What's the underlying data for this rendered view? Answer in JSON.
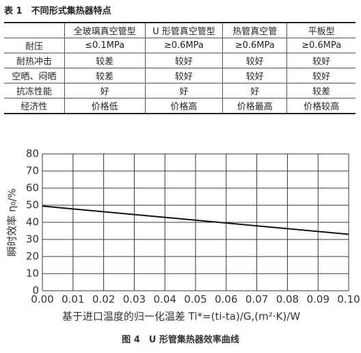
{
  "table": {
    "title": "表 1　不同形式集热器特点",
    "header": [
      "全玻璃真空管型",
      "U 形管真空管型",
      "热管真空管",
      "平板型"
    ],
    "rows": [
      [
        "耐压",
        "≤0.1MPa",
        "≥0.6MPa",
        "≥0.6MPa",
        "≥0.6MPa"
      ],
      [
        "耐热冲击",
        "较差",
        "较好",
        "较好",
        "较好"
      ],
      [
        "空晒、闷晒",
        "较差",
        "较好",
        "较好",
        "较好"
      ],
      [
        "抗冻性能",
        "好",
        "好",
        "好",
        "较差"
      ],
      [
        "经济性",
        "价格低",
        "价格高",
        "价格最高",
        "价格较高"
      ]
    ]
  },
  "chart_data": {
    "type": "line",
    "caption": "图 4　U 形管集热器效率曲线",
    "xlabel": "基于进口温度的归一化温差 Ti*=(ti-ta)/G,(m²·K)/W",
    "ylabel": "瞬时效率 η₀/%",
    "x": [
      0,
      0.1
    ],
    "series": [
      {
        "name": "效率曲线",
        "color": "#111111",
        "values": [
          49.5,
          33
        ]
      }
    ],
    "xlim": [
      0,
      0.1
    ],
    "ylim": [
      0,
      80
    ],
    "xticks": [
      {
        "value": 0,
        "label": "0.00"
      },
      {
        "value": 0.01,
        "label": "0.01"
      },
      {
        "value": 0.02,
        "label": "0.02"
      },
      {
        "value": 0.03,
        "label": "0.03"
      },
      {
        "value": 0.04,
        "label": "0.04"
      },
      {
        "value": 0.05,
        "label": "0.05"
      },
      {
        "value": 0.06,
        "label": "0.06"
      },
      {
        "value": 0.07,
        "label": "0.07"
      },
      {
        "value": 0.08,
        "label": "0.08"
      },
      {
        "value": 0.09,
        "label": "0.09"
      },
      {
        "value": 0.1,
        "label": "0.10"
      }
    ],
    "yticks": [
      0,
      10,
      20,
      30,
      40,
      50,
      60,
      70,
      80
    ],
    "grid": true
  }
}
